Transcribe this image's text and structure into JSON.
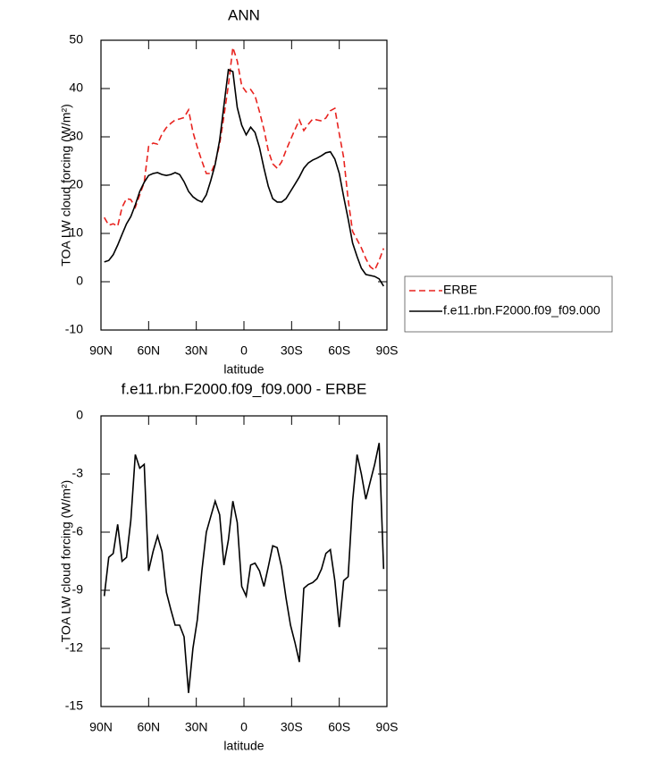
{
  "chart_data": [
    {
      "type": "line",
      "title": "ANN",
      "xlabel": "latitude",
      "ylabel": "TOA LW cloud forcing (W/m²)",
      "x": [
        87.9,
        85.1,
        82.3,
        79.5,
        76.7,
        73.9,
        71.2,
        68.4,
        65.6,
        62.8,
        60.0,
        57.2,
        54.4,
        51.6,
        48.8,
        46.0,
        43.3,
        40.5,
        37.7,
        34.9,
        32.1,
        29.3,
        26.5,
        23.7,
        20.9,
        18.1,
        15.3,
        12.6,
        9.8,
        7.0,
        4.2,
        1.4,
        -1.4,
        -4.2,
        -7.0,
        -9.8,
        -12.6,
        -15.3,
        -18.1,
        -20.9,
        -23.7,
        -26.5,
        -29.3,
        -32.1,
        -34.9,
        -37.7,
        -40.5,
        -43.3,
        -46.0,
        -48.8,
        -51.6,
        -54.4,
        -57.2,
        -60.0,
        -62.8,
        -65.6,
        -68.4,
        -71.2,
        -73.9,
        -76.7,
        -79.5,
        -82.3,
        -85.1,
        -87.9
      ],
      "series": [
        {
          "name": "ERBE",
          "color": "#e8231f",
          "linestyle": "dashed",
          "values": [
            13.3,
            11.7,
            12,
            11.5,
            15.4,
            17.2,
            17,
            15.4,
            18,
            20.6,
            28,
            28.7,
            28.5,
            30.6,
            31.9,
            32.8,
            33.5,
            33.7,
            34,
            35.6,
            31,
            27.8,
            25,
            22.4,
            22.4,
            24.6,
            28.5,
            34.3,
            40.7,
            48.5,
            45.7,
            40.6,
            39.3,
            39.8,
            38.5,
            35.2,
            31.5,
            27.2,
            24.4,
            23.5,
            24.8,
            27.2,
            29.4,
            31.5,
            33.5,
            31.3,
            32.6,
            33.7,
            33.5,
            33.3,
            33.9,
            35.4,
            35.9,
            30.6,
            25.7,
            17,
            10.4,
            8.7,
            7,
            4.8,
            3.1,
            2.4,
            4.4,
            6.9
          ]
        },
        {
          "name": "f.e11.rbn.F2000.f09_f09.000",
          "color": "#000000",
          "linestyle": "solid",
          "values": [
            4.1,
            4.4,
            5.6,
            7.6,
            9.8,
            12,
            13.5,
            15.9,
            18.7,
            20.6,
            22,
            22.4,
            22.6,
            22.2,
            22,
            22.2,
            22.6,
            22.2,
            20.7,
            18.7,
            17.6,
            16.9,
            16.5,
            18,
            20.9,
            24.3,
            29.3,
            36.5,
            43.9,
            43.5,
            36.1,
            32.4,
            30.4,
            32,
            30.9,
            27.8,
            23.5,
            19.8,
            17.2,
            16.5,
            16.5,
            17.2,
            18.7,
            20.2,
            21.7,
            23.5,
            24.6,
            25.2,
            25.6,
            26.1,
            26.7,
            26.9,
            25.4,
            22.4,
            17.6,
            13,
            8,
            5.2,
            2.8,
            1.5,
            1.3,
            1.1,
            0.6,
            -0.9
          ]
        }
      ],
      "xlim": [
        90,
        -90
      ],
      "xticks": [
        {
          "value": 90,
          "label": "90N"
        },
        {
          "value": 60,
          "label": "60N"
        },
        {
          "value": 30,
          "label": "30N"
        },
        0,
        {
          "value": -30,
          "label": "30S"
        },
        {
          "value": -60,
          "label": "60S"
        },
        {
          "value": -90,
          "label": "90S"
        }
      ],
      "ylim": [
        -10,
        50
      ],
      "yticks": [
        -10,
        0,
        10,
        20,
        30,
        40,
        50
      ],
      "legend": "outside right"
    },
    {
      "type": "line",
      "title": "f.e11.rbn.F2000.f09_f09.000 - ERBE",
      "xlabel": "latitude",
      "ylabel": "TOA LW cloud forcing (W/m²)",
      "x": [
        87.9,
        85.1,
        82.3,
        79.5,
        76.7,
        73.9,
        71.2,
        68.4,
        65.6,
        62.8,
        60.0,
        57.2,
        54.4,
        51.6,
        48.8,
        46.0,
        43.3,
        40.5,
        37.7,
        34.9,
        32.1,
        29.3,
        26.5,
        23.7,
        20.9,
        18.1,
        15.3,
        12.6,
        9.8,
        7.0,
        4.2,
        1.4,
        -1.4,
        -4.2,
        -7.0,
        -9.8,
        -12.6,
        -15.3,
        -18.1,
        -20.9,
        -23.7,
        -26.5,
        -29.3,
        -32.1,
        -34.9,
        -37.7,
        -40.5,
        -43.3,
        -46.0,
        -48.8,
        -51.6,
        -54.4,
        -57.2,
        -60.0,
        -62.8,
        -65.6,
        -68.4,
        -71.2,
        -73.9,
        -76.7,
        -79.5,
        -82.3,
        -85.1,
        -87.9
      ],
      "series": [
        {
          "color": "#000000",
          "linestyle": "solid",
          "values": [
            -9.3,
            -7.3,
            -7.1,
            -5.6,
            -7.5,
            -7.3,
            -5.4,
            -2.0,
            -2.7,
            -2.5,
            -8.0,
            -7.0,
            -6.2,
            -7.0,
            -9.1,
            -10.0,
            -10.8,
            -10.8,
            -11.4,
            -14.3,
            -12.0,
            -10.5,
            -8.0,
            -6.0,
            -5.2,
            -4.4,
            -5.1,
            -7.7,
            -6.4,
            -4.4,
            -5.5,
            -8.8,
            -9.3,
            -7.7,
            -7.6,
            -8.0,
            -8.8,
            -7.8,
            -6.7,
            -6.8,
            -7.8,
            -9.4,
            -10.8,
            -11.7,
            -12.7,
            -8.9,
            -8.7,
            -8.6,
            -8.4,
            -7.9,
            -7.1,
            -6.9,
            -8.5,
            -10.9,
            -8.5,
            -8.3,
            -4.4,
            -2.0,
            -3.0,
            -4.3,
            -3.4,
            -2.5,
            -1.4,
            -7.9
          ]
        }
      ],
      "xlim": [
        90,
        -90
      ],
      "xticks": [
        {
          "value": 90,
          "label": "90N"
        },
        {
          "value": 60,
          "label": "60N"
        },
        {
          "value": 30,
          "label": "30N"
        },
        0,
        {
          "value": -30,
          "label": "30S"
        },
        {
          "value": -60,
          "label": "60S"
        },
        {
          "value": -90,
          "label": "90S"
        }
      ],
      "ylim": [
        -15,
        0
      ],
      "yticks": [
        -15,
        -12,
        -9,
        -6,
        -3,
        0
      ]
    }
  ]
}
